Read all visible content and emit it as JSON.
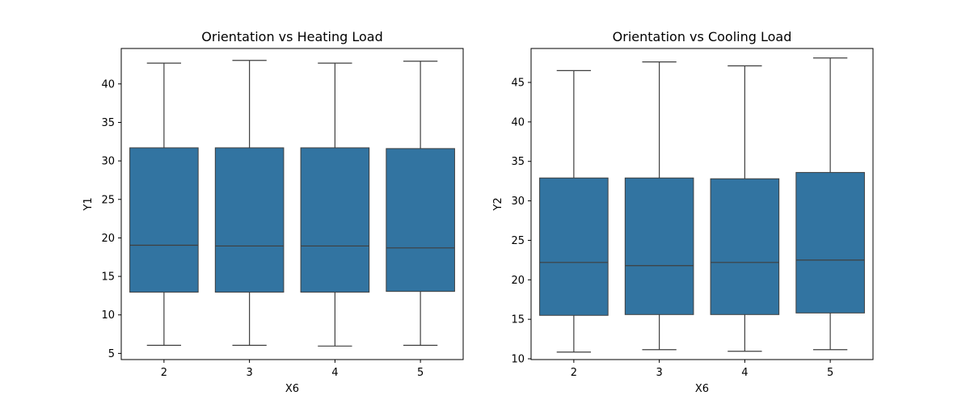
{
  "chart_data": [
    {
      "type": "box",
      "title": "Orientation vs Heating Load",
      "xlabel": "X6",
      "ylabel": "Y1",
      "categories": [
        "2",
        "3",
        "4",
        "5"
      ],
      "ylim": [
        4.2,
        44.6
      ],
      "yticks": [
        5,
        10,
        15,
        20,
        25,
        30,
        35,
        40
      ],
      "boxes": [
        {
          "min": 6.05,
          "q1": 12.95,
          "median": 19.05,
          "q3": 31.7,
          "max": 42.7
        },
        {
          "min": 6.05,
          "q1": 12.95,
          "median": 18.95,
          "q3": 31.7,
          "max": 43.05
        },
        {
          "min": 5.95,
          "q1": 12.95,
          "median": 18.95,
          "q3": 31.7,
          "max": 42.7
        },
        {
          "min": 6.05,
          "q1": 13.05,
          "median": 18.7,
          "q3": 31.6,
          "max": 42.95
        }
      ]
    },
    {
      "type": "box",
      "title": "Orientation vs Cooling Load",
      "xlabel": "X6",
      "ylabel": "Y2",
      "categories": [
        "2",
        "3",
        "4",
        "5"
      ],
      "ylim": [
        9.9,
        49.3
      ],
      "yticks": [
        10,
        15,
        20,
        25,
        30,
        35,
        40,
        45
      ],
      "boxes": [
        {
          "min": 10.85,
          "q1": 15.5,
          "median": 22.2,
          "q3": 32.9,
          "max": 46.5
        },
        {
          "min": 11.15,
          "q1": 15.6,
          "median": 21.8,
          "q3": 32.9,
          "max": 47.6
        },
        {
          "min": 10.95,
          "q1": 15.6,
          "median": 22.2,
          "q3": 32.8,
          "max": 47.1
        },
        {
          "min": 11.15,
          "q1": 15.8,
          "median": 22.5,
          "q3": 33.6,
          "max": 48.1
        }
      ]
    }
  ]
}
